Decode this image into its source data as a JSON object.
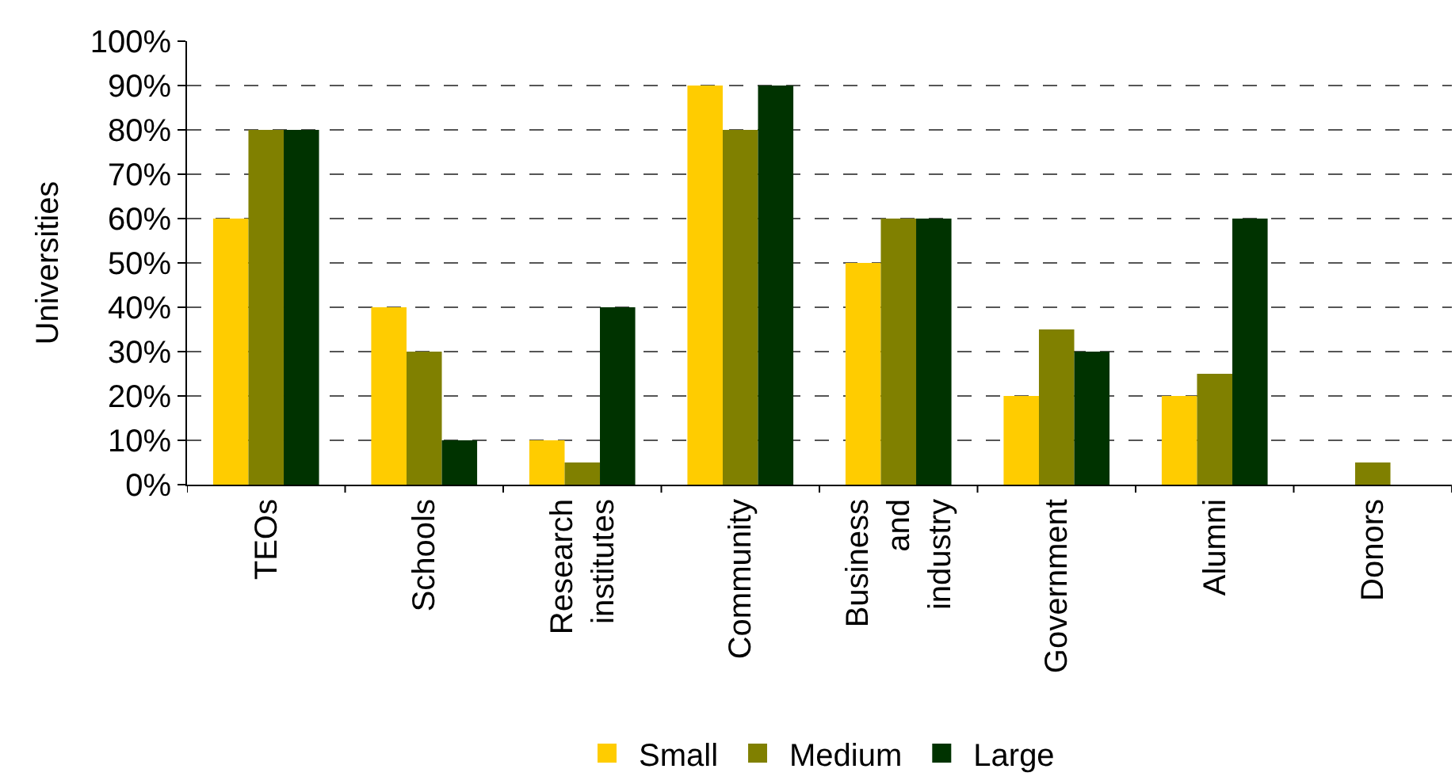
{
  "chart_data": {
    "type": "bar",
    "ylabel": "Universities",
    "categories": [
      "TEOs",
      "Schools",
      "Research institutes",
      "Community",
      "Business and industry",
      "Government",
      "Alumni",
      "Donors"
    ],
    "series": [
      {
        "name": "Small",
        "color": "#ffcc00",
        "values": [
          60,
          40,
          10,
          90,
          50,
          20,
          20,
          0
        ]
      },
      {
        "name": "Medium",
        "color": "#808000",
        "values": [
          80,
          30,
          5,
          80,
          60,
          35,
          25,
          5
        ]
      },
      {
        "name": "Large",
        "color": "#003300",
        "values": [
          80,
          10,
          40,
          90,
          60,
          30,
          60,
          0
        ]
      }
    ],
    "ylim": [
      0,
      100
    ],
    "yticks": [
      {
        "value": 0,
        "label": "0%"
      },
      {
        "value": 10,
        "label": "10%"
      },
      {
        "value": 20,
        "label": "20%"
      },
      {
        "value": 30,
        "label": "30%"
      },
      {
        "value": 40,
        "label": "40%"
      },
      {
        "value": 50,
        "label": "50%"
      },
      {
        "value": 60,
        "label": "60%"
      },
      {
        "value": 70,
        "label": "70%"
      },
      {
        "value": 80,
        "label": "80%"
      },
      {
        "value": 90,
        "label": "90%"
      },
      {
        "value": 100,
        "label": "100%"
      }
    ],
    "grid": "y",
    "legend": "bottom"
  }
}
